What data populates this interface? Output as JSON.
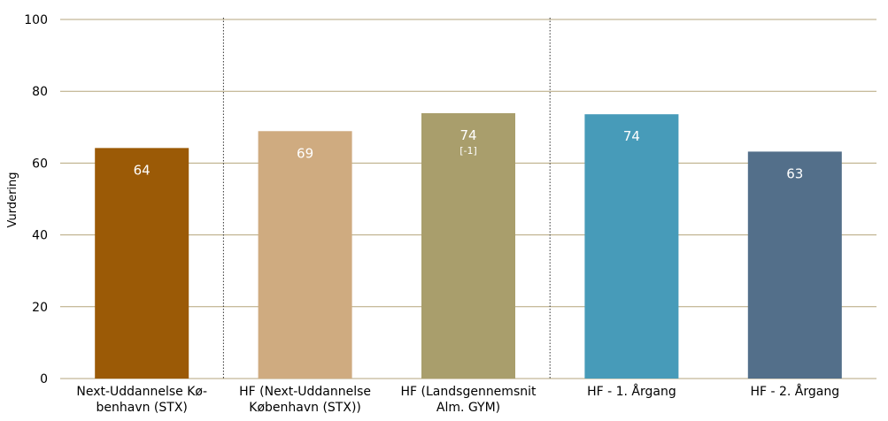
{
  "chart_data": {
    "type": "bar",
    "ylabel": "Vurdering",
    "xlabel": "",
    "ylim": [
      0,
      100
    ],
    "yticks": [
      0,
      20,
      40,
      60,
      80,
      100
    ],
    "grid": true,
    "categories": [
      [
        "Next-Uddannelse Kø-",
        "benhavn (STX)"
      ],
      [
        "HF (Next-Uddannelse",
        "København (STX))"
      ],
      [
        "HF (Landsgennemsnit",
        "Alm. GYM)"
      ],
      [
        "HF - 1. Årgang"
      ],
      [
        "HF - 2. Årgang"
      ]
    ],
    "values": [
      64.2,
      68.9,
      73.9,
      73.6,
      63.2
    ],
    "data_labels": [
      "64",
      "69",
      "74",
      "74",
      "63"
    ],
    "sub_labels": [
      "",
      "",
      "[-1]",
      "",
      ""
    ],
    "colors": [
      "#9b5a06",
      "#cfab80",
      "#a99e6c",
      "#479bb9",
      "#536f8a"
    ],
    "gridline_color": "#b5a67c",
    "separators_after_index": [
      0,
      2
    ]
  }
}
